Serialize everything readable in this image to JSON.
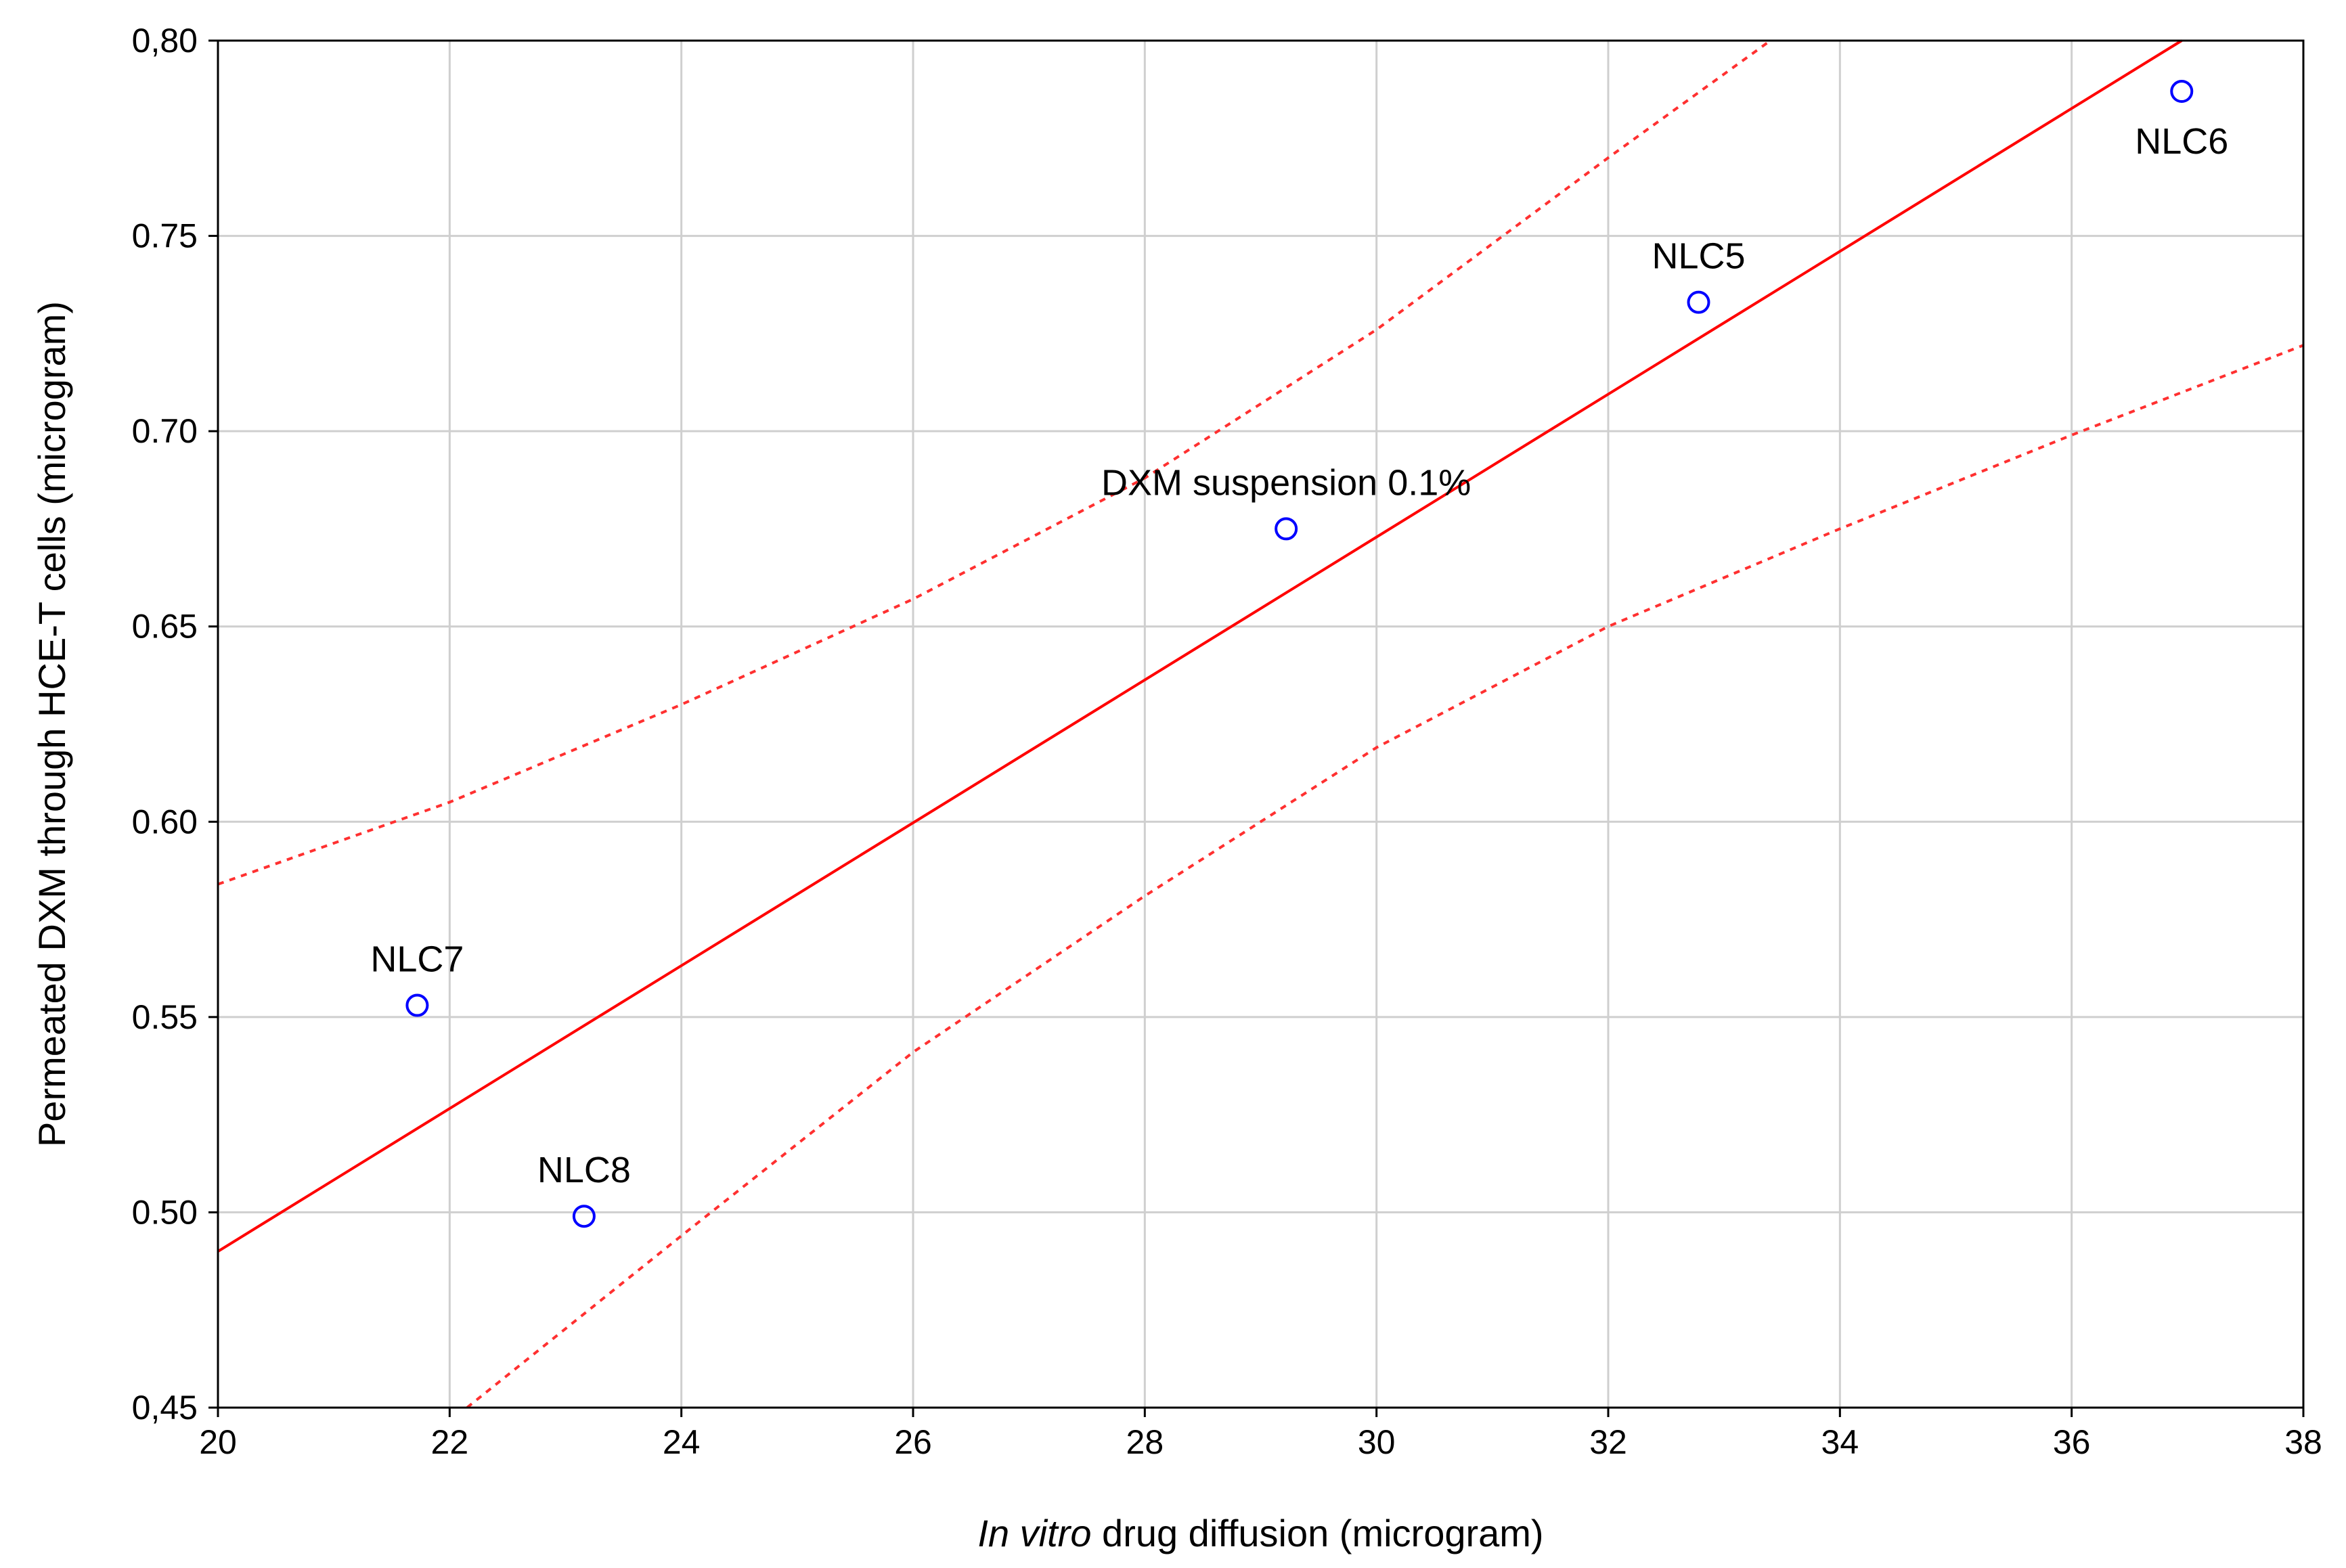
{
  "chart_data": {
    "type": "scatter",
    "xlabel_italic": "In vitro",
    "xlabel_rest": " drug diffusion (microgram)",
    "ylabel": "Permeated DXM through HCE-T cells (microgram)",
    "xlim": [
      20,
      38
    ],
    "ylim": [
      0.45,
      0.8
    ],
    "x_ticks": [
      20,
      22,
      24,
      26,
      28,
      30,
      32,
      34,
      36,
      38
    ],
    "y_ticks": [
      0.45,
      0.5,
      0.55,
      0.6,
      0.65,
      0.7,
      0.75,
      0.8
    ],
    "x_tick_labels": [
      "20",
      "22",
      "24",
      "26",
      "28",
      "30",
      "32",
      "34",
      "36",
      "38"
    ],
    "y_tick_labels": [
      "0,45",
      "0.50",
      "0.55",
      "0.60",
      "0.65",
      "0.70",
      "0.75",
      "0,80"
    ],
    "grid": true,
    "points": [
      {
        "label": "NLC7",
        "x": 21.72,
        "y": 0.553
      },
      {
        "label": "NLC8",
        "x": 23.16,
        "y": 0.499
      },
      {
        "label": "DXM suspension 0.1%",
        "x": 29.22,
        "y": 0.675
      },
      {
        "label": "NLC5",
        "x": 32.78,
        "y": 0.733
      },
      {
        "label": "NLC6",
        "x": 36.95,
        "y": 0.787
      }
    ],
    "regression_line": {
      "x": [
        20,
        36.95
      ],
      "y": [
        0.49,
        0.8
      ]
    },
    "confidence_upper": {
      "x": [
        20,
        22,
        24,
        26,
        28,
        30,
        32,
        33.4
      ],
      "y": [
        0.584,
        0.605,
        0.63,
        0.657,
        0.688,
        0.726,
        0.77,
        0.8
      ]
    },
    "confidence_lower": {
      "x": [
        22.15,
        24,
        26,
        28,
        30,
        32,
        34,
        36,
        38
      ],
      "y": [
        0.45,
        0.494,
        0.541,
        0.581,
        0.619,
        0.65,
        0.675,
        0.699,
        0.722
      ]
    },
    "colors": {
      "points": "#0000ff",
      "fit_line": "#ff0000",
      "confidence_band": "#ff3030",
      "grid": "#cfcfcf"
    }
  }
}
